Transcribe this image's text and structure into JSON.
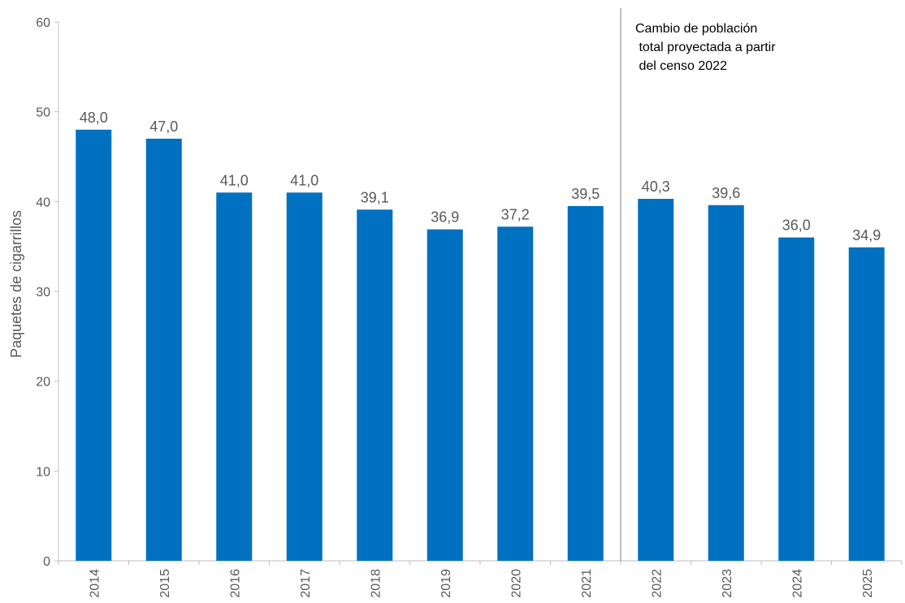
{
  "chart_data": {
    "type": "bar",
    "categories": [
      "2014",
      "2015",
      "2016",
      "2017",
      "2018",
      "2019",
      "2020",
      "2021",
      "2022",
      "2023",
      "2024",
      "2025"
    ],
    "values": [
      48.0,
      47.0,
      41.0,
      41.0,
      39.1,
      36.9,
      37.2,
      39.5,
      40.3,
      39.6,
      36.0,
      34.9
    ],
    "value_labels": [
      "48,0",
      "47,0",
      "41,0",
      "41,0",
      "39,1",
      "36,9",
      "37,2",
      "39,5",
      "40,3",
      "39,6",
      "36,0",
      "34,9"
    ],
    "y_ticks": [
      0,
      10,
      20,
      30,
      40,
      50,
      60
    ],
    "ylim": [
      0,
      60
    ],
    "ylabel": "Paquetes de cigarrillos",
    "xlabel": "",
    "title": "",
    "grid": false,
    "legend": "none",
    "bar_color": "#0070C0",
    "annotation": {
      "after_category": "2021",
      "lines": [
        "Cambio de población",
        " total proyectada a partir",
        " del censo 2022"
      ]
    }
  }
}
